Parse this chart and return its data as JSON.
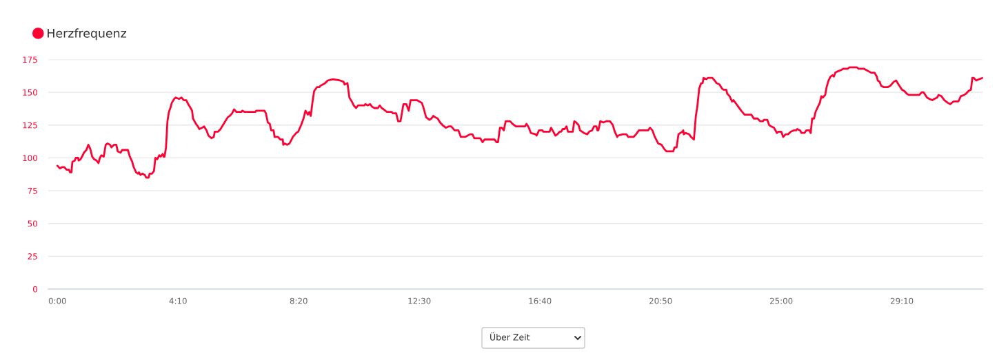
{
  "chart_data": {
    "type": "line",
    "x": [
      0,
      5,
      10,
      14,
      19,
      24,
      26,
      29,
      31,
      36,
      38,
      43,
      44,
      48,
      51,
      55,
      60,
      64,
      68,
      72,
      76,
      81,
      85,
      88,
      91,
      96,
      100,
      104,
      109,
      112,
      117,
      122,
      125,
      131,
      134,
      146,
      150,
      155,
      158,
      163,
      167,
      169,
      172,
      176,
      181,
      184,
      189,
      191,
      196,
      200,
      203,
      207,
      211,
      214,
      218,
      220,
      222,
      225,
      228,
      231,
      234,
      237,
      242,
      245,
      252,
      257,
      262,
      267,
      271,
      276,
      279,
      281,
      287,
      291,
      294,
      300,
      304,
      309,
      313,
      319,
      324,
      326,
      333,
      338,
      343,
      348,
      353,
      357,
      362,
      366,
      371,
      381,
      383,
      388,
      410,
      412,
      429,
      432,
      436,
      440,
      443,
      448,
      450,
      457,
      462,
      467,
      468,
      471,
      476,
      481,
      488,
      495,
      499,
      505,
      510,
      514,
      519,
      522,
      525,
      528,
      532,
      538,
      543,
      545,
      550,
      555,
      560,
      571,
      586,
      593,
      595,
      601,
      605,
      610,
      614,
      619,
      623,
      636,
      638,
      643,
      648,
      652,
      657,
      664,
      668,
      672,
      676,
      683,
      693,
      695,
      702,
      706,
      711,
      717,
      723,
      728,
      732,
      745,
      750,
      755,
      758,
      764,
      771,
      775,
      779,
      783,
      788,
      793,
      798,
      805,
      811,
      816,
      823,
      831,
      836,
      841,
      845,
      855,
      860,
      864,
      876,
      881,
      885,
      902,
      906,
      910,
      913,
      917,
      921,
      925,
      929,
      938,
      943,
      950,
      969,
      972,
      977,
      981,
      991,
      993,
      998,
      1005,
      1007,
      1020,
      1023,
      1026,
      1032,
      1036,
      1041,
      1044,
      1047,
      1051,
      1055,
      1058,
      1068,
      1071,
      1075,
      1080,
      1083,
      1091,
      1098,
      1102,
      1108,
      1112,
      1117,
      1119,
      1121,
      1125,
      1131,
      1138,
      1145,
      1151,
      1155,
      1160,
      1162,
      1171,
      1179,
      1183,
      1194,
      1199,
      1205,
      1224,
      1228,
      1233,
      1238,
      1245,
      1252,
      1257,
      1262,
      1276,
      1279,
      1283,
      1287,
      1291,
      1295,
      1297,
      1298,
      1302,
      1309,
      1313,
      1319,
      1323,
      1326,
      1330,
      1334,
      1337,
      1339,
      1345,
      1348,
      1357,
      1362,
      1366,
      1372,
      1377,
      1380,
      1386,
      1388,
      1393,
      1398,
      1401,
      1407,
      1411,
      1417,
      1424,
      1438,
      1443,
      1451,
      1456,
      1462,
      1464,
      1471,
      1475,
      1479,
      1485,
      1491,
      1494,
      1500,
      1504,
      1509,
      1514,
      1520,
      1526,
      1531,
      1533,
      1539,
      1542,
      1548,
      1552,
      1558,
      1561,
      1564,
      1568,
      1571,
      1576,
      1580,
      1583,
      1586,
      1591,
      1594,
      1598,
      1602,
      1606,
      1609,
      1612,
      1617,
      1624,
      1629,
      1638,
      1641,
      1657,
      1660,
      1671,
      1676,
      1681,
      1686,
      1693,
      1698,
      1700,
      1704,
      1707,
      1712,
      1721,
      1726,
      1733,
      1738,
      1743,
      1750,
      1755,
      1760,
      1764,
      1771,
      1777,
      1786,
      1791,
      1795,
      1802,
      1807,
      1813,
      1817,
      1823,
      1826,
      1832,
      1838,
      1845,
      1850,
      1857,
      1867,
      1872,
      1879,
      1883,
      1888,
      1893,
      1896,
      1899,
      1904,
      1910,
      1917
    ],
    "series": [
      {
        "name": "Herzfrequenz",
        "color": "#ff0033",
        "values": [
          94,
          92,
          93,
          93,
          91,
          91,
          89,
          89,
          97,
          98,
          100,
          100,
          98,
          99,
          101,
          104,
          106,
          110,
          107,
          101,
          99,
          98,
          96,
          100,
          102,
          101,
          110,
          111,
          110,
          108,
          110,
          110,
          105,
          104,
          106,
          106,
          101,
          97,
          93,
          89,
          88,
          89,
          87,
          88,
          87,
          85,
          85,
          88,
          88,
          90,
          100,
          99,
          102,
          101,
          103,
          101,
          101,
          108,
          128,
          135,
          138,
          142,
          145,
          146,
          145,
          146,
          144,
          144,
          141,
          138,
          136,
          130,
          126,
          124,
          122,
          123,
          124,
          121,
          117,
          115,
          116,
          120,
          120,
          122,
          125,
          128,
          131,
          132,
          134,
          137,
          135,
          135,
          136,
          135,
          135,
          136,
          136,
          134,
          127,
          126,
          121,
          121,
          116,
          116,
          114,
          114,
          110,
          111,
          110,
          111,
          116,
          119,
          120,
          125,
          130,
          136,
          133,
          135,
          132,
          141,
          151,
          154,
          154,
          155,
          156,
          157,
          159,
          160,
          159,
          158,
          156,
          157,
          146,
          143,
          140,
          138,
          140,
          140,
          141,
          140,
          141,
          139,
          138,
          138,
          140,
          138,
          137,
          135,
          135,
          134,
          134,
          128,
          128,
          141,
          141,
          136,
          144,
          144,
          143,
          142,
          139,
          131,
          129,
          130,
          132,
          131,
          130,
          127,
          125,
          123,
          124,
          124,
          121,
          121,
          116,
          116,
          116,
          118,
          118,
          115,
          115,
          112,
          114,
          114,
          114,
          112,
          112,
          123,
          123,
          121,
          128,
          128,
          126,
          124,
          124,
          126,
          123,
          119,
          118,
          117,
          121,
          121,
          120,
          120,
          123,
          121,
          117,
          118,
          120,
          120,
          122,
          122,
          124,
          120,
          120,
          128,
          127,
          125,
          121,
          119,
          118,
          120,
          121,
          124,
          124,
          121,
          121,
          128,
          127,
          128,
          128,
          125,
          120,
          116,
          117,
          118,
          118,
          116,
          116,
          118,
          121,
          121,
          123,
          121,
          116,
          111,
          110,
          107,
          105,
          105,
          108,
          108,
          118,
          119,
          120,
          121,
          118,
          119,
          118,
          116,
          114,
          132,
          139,
          153,
          157,
          157,
          161,
          160,
          161,
          161,
          159,
          157,
          156,
          153,
          152,
          152,
          149,
          147,
          143,
          144,
          141,
          139,
          136,
          133,
          133,
          130,
          130,
          128,
          128,
          129,
          129,
          125,
          124,
          123,
          119,
          120,
          120,
          116,
          118,
          118,
          120,
          121,
          121,
          122,
          121,
          119,
          119,
          121,
          121,
          119,
          130,
          130,
          135,
          139,
          142,
          147,
          146,
          148,
          154,
          159,
          162,
          163,
          162,
          165,
          166,
          167,
          168,
          168,
          169,
          169,
          168,
          168,
          167,
          166,
          165,
          165,
          162,
          159,
          158,
          155,
          154,
          154,
          155,
          158,
          159,
          156,
          152,
          151,
          149,
          148,
          148,
          148,
          148,
          150,
          150,
          146,
          145,
          144,
          145,
          146,
          148,
          147,
          144,
          142,
          141,
          143,
          143,
          147,
          148,
          149,
          151,
          152,
          161,
          161,
          159,
          160,
          161
        ]
      }
    ],
    "xlim": [
      -19,
      1918
    ],
    "xticks": [
      {
        "value": 0,
        "label": "0:00"
      },
      {
        "value": 250,
        "label": "4:10"
      },
      {
        "value": 500,
        "label": "8:20"
      },
      {
        "value": 750,
        "label": "12:30"
      },
      {
        "value": 1000,
        "label": "16:40"
      },
      {
        "value": 1250,
        "label": "20:50"
      },
      {
        "value": 1500,
        "label": "25:00"
      },
      {
        "value": 1750,
        "label": "29:10"
      }
    ],
    "ylim": [
      0,
      175
    ],
    "yticks": [
      0,
      25,
      50,
      75,
      100,
      125,
      150,
      175
    ],
    "grid": "y",
    "legend": "top left",
    "annotations": [
      "Über Zeit"
    ]
  }
}
